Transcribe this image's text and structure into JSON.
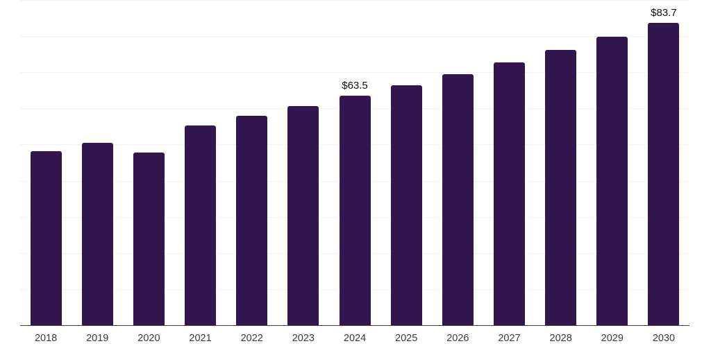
{
  "chart_data": {
    "type": "bar",
    "title": "",
    "xlabel": "",
    "ylabel": "",
    "categories": [
      "2018",
      "2019",
      "2020",
      "2021",
      "2022",
      "2023",
      "2024",
      "2025",
      "2026",
      "2027",
      "2028",
      "2029",
      "2030"
    ],
    "values": [
      48.1,
      50.4,
      47.8,
      55.2,
      57.9,
      60.7,
      63.5,
      66.4,
      69.5,
      72.8,
      76.2,
      79.9,
      83.7
    ],
    "data_labels": {
      "2024": "$63.5",
      "2030": "$83.7"
    },
    "ylim": [
      0,
      90
    ],
    "gridline_step": 10,
    "grid": "horizontal",
    "legend": "none",
    "colors": {
      "bar": "#31174d",
      "gridline": "#f3f1f4",
      "axis_line": "#3d3d3d",
      "tick_label": "#3a3a3a",
      "data_label": "#0f0f0f",
      "background": "#ffffff"
    }
  }
}
